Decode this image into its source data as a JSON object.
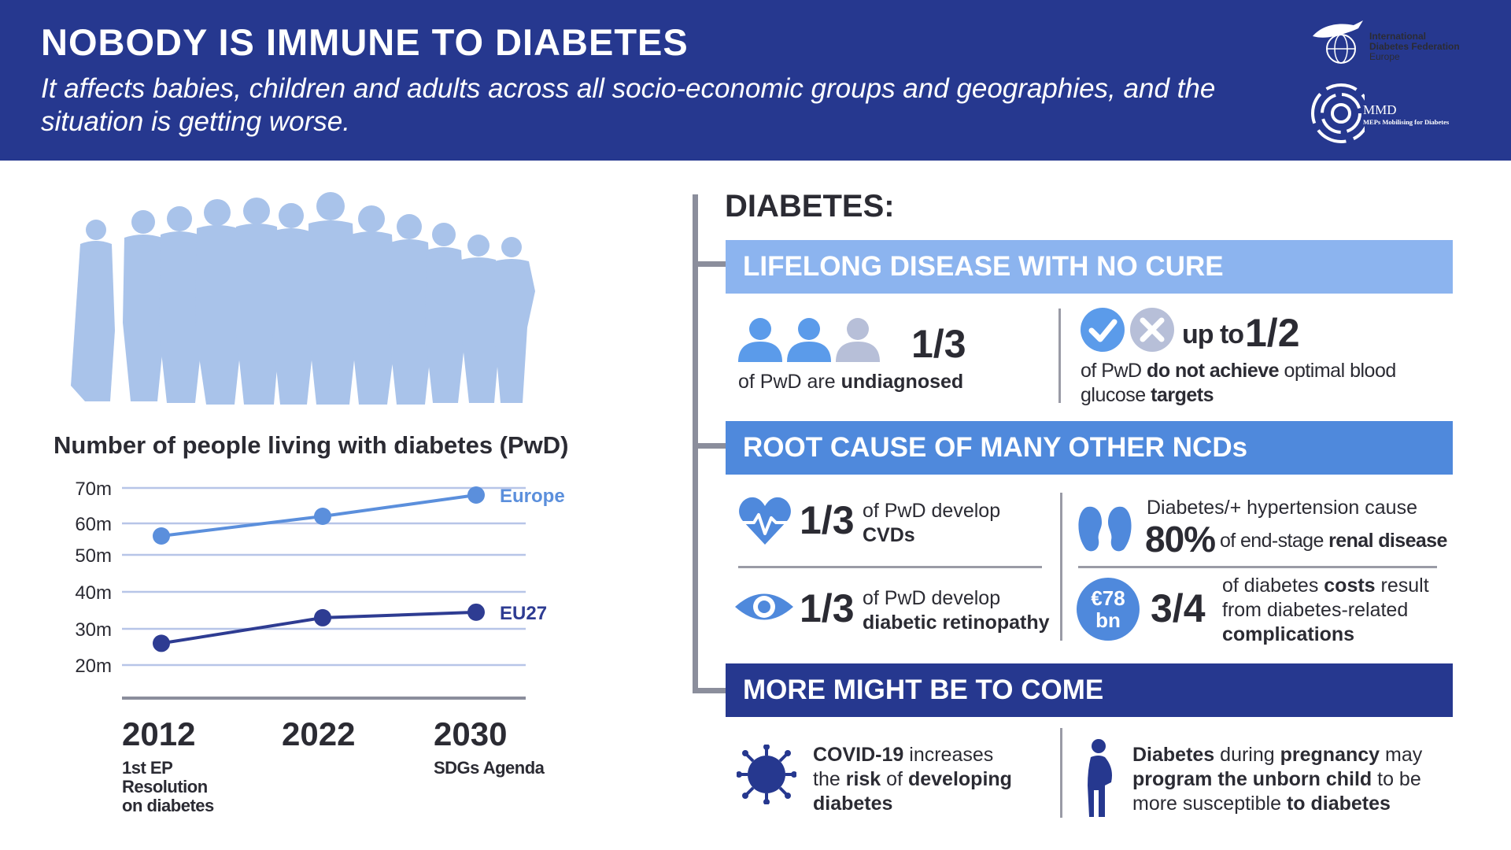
{
  "header": {
    "title": "NOBODY IS IMMUNE TO DIABETES",
    "subtitle": "It affects babies, children and adults across all socio-economic groups and geographies, and the situation is getting worse.",
    "logo_idf": [
      "International",
      "Diabetes Federation",
      "Europe"
    ],
    "logo_mmd_main": "MMD",
    "logo_mmd_sub": "MEPs Mobilising for Diabetes"
  },
  "chart_data": {
    "type": "line",
    "title": "Number of people living with diabetes (PwD)",
    "x": [
      "2012",
      "2022",
      "2030"
    ],
    "x_notes": [
      "1st EP Resolution on diabetes",
      "",
      "SDGs Agenda"
    ],
    "y_tick_labels": [
      "70m",
      "60m",
      "50m",
      "40m",
      "30m",
      "20m"
    ],
    "ylim": [
      20,
      70
    ],
    "grid": true,
    "series": [
      {
        "name": "Europe",
        "values": [
          56,
          62,
          68
        ],
        "color": "#5b8fdc"
      },
      {
        "name": "EU27",
        "values": [
          26,
          33,
          34.5
        ],
        "color": "#2e3c92"
      }
    ]
  },
  "diabetes": {
    "heading": "DIABETES:",
    "section1": {
      "band": "LIFELONG DISEASE WITH NO CURE",
      "stat1_big": "1/3",
      "stat1_pre": "of PwD are",
      "stat1_bold": "undiagnosed",
      "stat2_upto": "up to",
      "stat2_big": "1/2",
      "stat2_a": "of PwD",
      "stat2_b": "do not achieve",
      "stat2_c": "optimal blood",
      "stat2_d": "glucose",
      "stat2_e": "targets"
    },
    "section2": {
      "band": "ROOT CAUSE OF MANY OTHER NCDs",
      "cvd_big": "1/3",
      "cvd_pre": "of PwD develop",
      "cvd_bold": "CVDs",
      "eye_big": "1/3",
      "eye_pre": "of PwD develop",
      "eye_bold": "diabetic retinopathy",
      "renal_line1": "Diabetes/+ hypertension cause",
      "renal_big": "80%",
      "renal_pre": "of end-stage",
      "renal_bold": "renal disease",
      "cost_badge1": "€78",
      "cost_badge2": "bn",
      "cost_big": "3/4",
      "cost_a": "of diabetes",
      "cost_b": "costs",
      "cost_c": "result",
      "cost_d": "from diabetes-related",
      "cost_e": "complications"
    },
    "section3": {
      "band": "MORE MIGHT BE TO COME",
      "covid_a": "COVID-19",
      "covid_b": "increases",
      "covid_c": "the",
      "covid_d": "risk",
      "covid_e": "of",
      "covid_f": "developing",
      "covid_g": "diabetes",
      "preg_a": "Diabetes",
      "preg_b": "during",
      "preg_c": "pregnancy",
      "preg_d": "may",
      "preg_e": "program the unborn child",
      "preg_f": "to be",
      "preg_g": "more susceptible",
      "preg_h": "to diabetes"
    }
  }
}
